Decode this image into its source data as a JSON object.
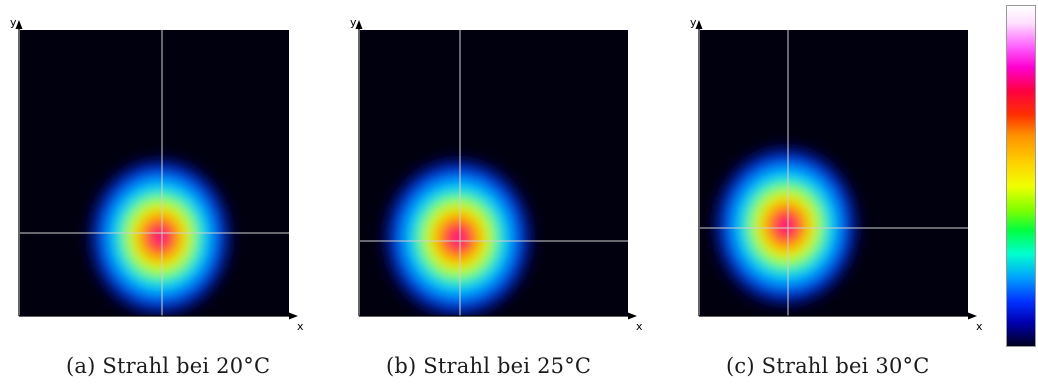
{
  "axis_labels": {
    "x": "x",
    "y": "y"
  },
  "panels": [
    {
      "caption": "(a) Strahl bei 20°C"
    },
    {
      "caption": "(b) Strahl bei 25°C"
    },
    {
      "caption": "(c) Strahl bei 30°C"
    }
  ],
  "colors": {
    "background": "#00000f",
    "crosshair": "#d0d0d0",
    "axis": "#000000"
  }
}
